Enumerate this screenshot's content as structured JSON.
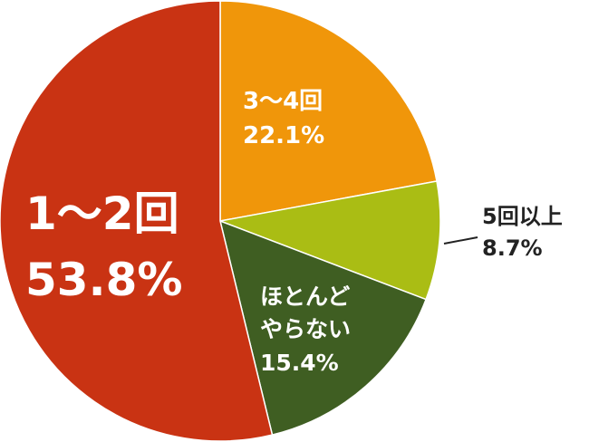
{
  "chart_data": {
    "type": "pie",
    "categories": [
      "3～4回",
      "5回以上",
      "ほとんどやらない",
      "1～2回"
    ],
    "values": [
      22.1,
      8.7,
      15.4,
      53.8
    ],
    "value_labels": [
      "22.1%",
      "8.7%",
      "15.4%",
      "53.8%"
    ],
    "colors": [
      "#f0960a",
      "#aabd14",
      "#3f5e22",
      "#c93313"
    ]
  }
}
